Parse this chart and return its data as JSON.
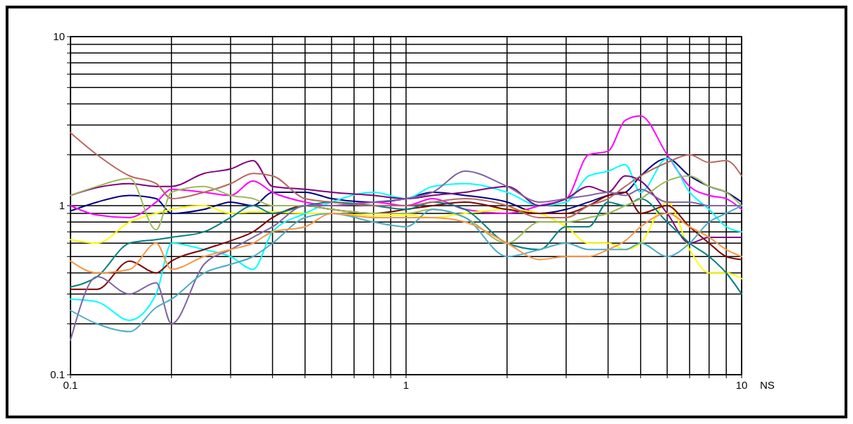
{
  "chart_data": {
    "type": "line",
    "xlabel": "NS",
    "log": "xy",
    "grid": true,
    "line_style": "solid",
    "xlim": [
      0.1,
      10
    ],
    "ylim": [
      0.1,
      10
    ],
    "xticks": [
      0.1,
      {
        "value": 0.2,
        "label": null
      },
      {
        "value": 0.3,
        "label": null
      },
      {
        "value": 0.4,
        "label": null
      },
      {
        "value": 0.5,
        "label": null
      },
      {
        "value": 0.6,
        "label": null
      },
      {
        "value": 0.7,
        "label": null
      },
      {
        "value": 0.8,
        "label": null
      },
      {
        "value": 0.9,
        "label": null
      },
      1,
      {
        "value": 2,
        "label": null
      },
      {
        "value": 3,
        "label": null
      },
      {
        "value": 4,
        "label": null
      },
      {
        "value": 5,
        "label": null
      },
      {
        "value": 6,
        "label": null
      },
      {
        "value": 7,
        "label": null
      },
      {
        "value": 8,
        "label": null
      },
      {
        "value": 9,
        "label": null
      },
      10
    ],
    "yticks": [
      0.1,
      {
        "value": 0.2,
        "label": null
      },
      {
        "value": 0.3,
        "label": null
      },
      {
        "value": 0.4,
        "label": null
      },
      {
        "value": 0.5,
        "label": null
      },
      {
        "value": 0.6,
        "label": null
      },
      {
        "value": 0.7,
        "label": null
      },
      {
        "value": 0.8,
        "label": null
      },
      {
        "value": 0.9,
        "label": null
      },
      1,
      {
        "value": 2,
        "label": null
      },
      {
        "value": 3,
        "label": null
      },
      {
        "value": 4,
        "label": null
      },
      {
        "value": 5,
        "label": null
      },
      {
        "value": 6,
        "label": null
      },
      {
        "value": 7,
        "label": null
      },
      {
        "value": 8,
        "label": null
      },
      {
        "value": 9,
        "label": null
      },
      10
    ],
    "x": [
      0.1,
      0.12,
      0.15,
      0.18,
      0.2,
      0.25,
      0.3,
      0.35,
      0.4,
      0.5,
      0.6,
      0.8,
      1,
      1.2,
      1.5,
      2,
      2.5,
      3,
      3.5,
      4,
      4.5,
      5,
      6,
      7,
      8,
      9,
      10
    ],
    "series": [
      {
        "color": "#000080",
        "values": [
          0.93,
          1.05,
          1.15,
          1.1,
          0.9,
          0.95,
          1.05,
          1.0,
          1.2,
          1.2,
          1.1,
          1.05,
          1.1,
          1.2,
          1.15,
          1.05,
          0.9,
          0.95,
          1.05,
          1.15,
          1.2,
          1.5,
          1.9,
          1.5,
          1.3,
          1.2,
          1.05
        ]
      },
      {
        "color": "#ff00ff",
        "values": [
          1.0,
          0.88,
          0.85,
          1.05,
          1.25,
          1.2,
          1.15,
          1.4,
          1.2,
          1.05,
          1.0,
          1.05,
          1.0,
          1.1,
          0.95,
          0.9,
          1.0,
          1.1,
          2.0,
          2.1,
          3.2,
          3.4,
          2.0,
          1.3,
          1.15,
          1.1,
          0.95
        ]
      },
      {
        "color": "#ffff00",
        "values": [
          0.63,
          0.6,
          0.8,
          0.9,
          0.95,
          1.0,
          0.9,
          0.92,
          0.92,
          0.9,
          0.9,
          0.87,
          0.88,
          0.85,
          0.9,
          0.95,
          0.9,
          0.75,
          0.6,
          0.6,
          0.55,
          0.6,
          1.05,
          0.55,
          0.4,
          0.4,
          0.37
        ]
      },
      {
        "color": "#00ffff",
        "values": [
          0.28,
          0.27,
          0.21,
          0.3,
          0.6,
          0.55,
          0.5,
          0.42,
          0.7,
          0.9,
          1.05,
          1.2,
          1.1,
          1.3,
          1.35,
          1.2,
          1.0,
          1.05,
          1.5,
          1.6,
          1.75,
          1.2,
          1.9,
          1.2,
          0.95,
          0.75,
          0.7
        ]
      },
      {
        "color": "#800080",
        "values": [
          1.15,
          1.28,
          1.35,
          1.3,
          1.3,
          1.55,
          1.65,
          1.85,
          1.3,
          1.25,
          1.2,
          1.15,
          1.1,
          1.15,
          1.2,
          1.3,
          1.0,
          1.1,
          1.3,
          1.2,
          1.5,
          1.4,
          0.9,
          0.6,
          0.65,
          0.65,
          0.65
        ]
      },
      {
        "color": "#800000",
        "values": [
          0.32,
          0.32,
          0.47,
          0.4,
          0.47,
          0.55,
          0.62,
          0.7,
          0.85,
          1.0,
          0.95,
          0.9,
          0.95,
          1.0,
          1.05,
          0.95,
          0.9,
          0.9,
          1.0,
          1.15,
          1.2,
          0.9,
          1.0,
          0.75,
          0.6,
          0.5,
          0.48
        ]
      },
      {
        "color": "#008080",
        "values": [
          0.33,
          0.38,
          0.6,
          0.63,
          0.65,
          0.7,
          0.85,
          1.0,
          0.9,
          1.0,
          1.05,
          1.0,
          0.95,
          1.05,
          0.95,
          0.6,
          0.55,
          0.75,
          0.75,
          1.05,
          1.0,
          1.1,
          0.8,
          0.6,
          0.5,
          0.4,
          0.3
        ]
      },
      {
        "color": "#b9675f",
        "values": [
          2.7,
          2.0,
          1.5,
          1.35,
          1.1,
          1.2,
          1.35,
          1.55,
          1.5,
          1.1,
          1.05,
          1.0,
          1.0,
          1.05,
          1.1,
          1.0,
          0.85,
          0.85,
          1.0,
          1.1,
          1.3,
          1.5,
          1.8,
          2.0,
          1.8,
          1.85,
          1.5
        ]
      },
      {
        "color": "#9bbb59",
        "values": [
          1.15,
          1.3,
          1.45,
          0.72,
          1.2,
          1.3,
          1.15,
          1.1,
          1.0,
          1.0,
          0.95,
          0.9,
          0.9,
          0.95,
          0.85,
          0.6,
          0.8,
          0.8,
          0.85,
          0.9,
          1.0,
          1.1,
          1.4,
          1.5,
          1.3,
          1.2,
          1.0
        ]
      },
      {
        "color": "#8064a2",
        "values": [
          0.16,
          0.38,
          0.3,
          0.35,
          0.2,
          0.45,
          0.55,
          0.65,
          0.75,
          1.0,
          1.0,
          1.05,
          1.1,
          1.2,
          1.6,
          1.3,
          1.05,
          1.1,
          1.15,
          1.2,
          1.15,
          1.25,
          1.05,
          1.05,
          1.0,
          1.0,
          1.0
        ]
      },
      {
        "color": "#4bacc6",
        "values": [
          0.24,
          0.2,
          0.18,
          0.25,
          0.28,
          0.4,
          0.45,
          0.5,
          0.6,
          0.85,
          0.9,
          0.8,
          0.75,
          0.95,
          0.85,
          0.5,
          0.55,
          0.6,
          0.55,
          0.55,
          0.55,
          0.6,
          0.5,
          0.6,
          0.8,
          0.9,
          1.0
        ]
      },
      {
        "color": "#f79646",
        "values": [
          0.47,
          0.4,
          0.42,
          0.6,
          0.42,
          0.5,
          0.55,
          0.6,
          0.7,
          0.75,
          0.9,
          0.85,
          0.85,
          0.85,
          0.8,
          0.6,
          0.48,
          0.5,
          0.5,
          0.55,
          0.62,
          0.75,
          0.9,
          0.75,
          0.65,
          0.55,
          0.5
        ]
      }
    ]
  }
}
